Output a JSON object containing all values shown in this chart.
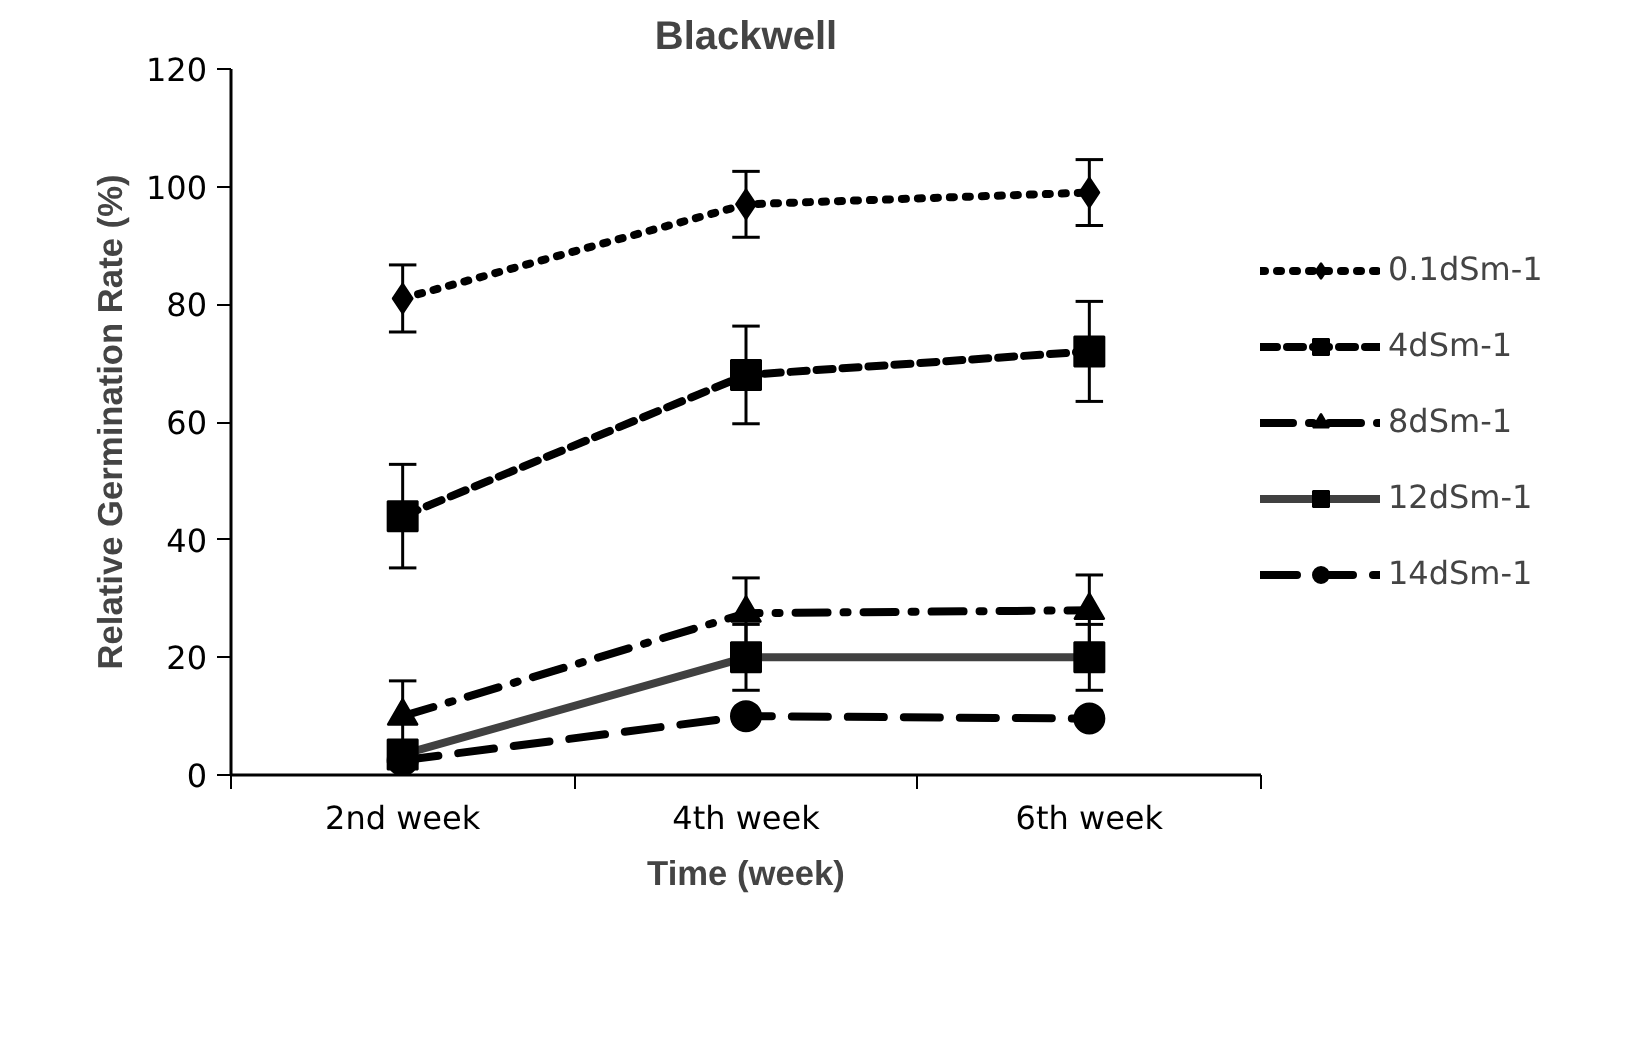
{
  "chart_data": {
    "type": "line",
    "title": "Blackwell",
    "xlabel": "Time (week)",
    "ylabel": "Relative Germination Rate (%)",
    "categories": [
      "2nd week",
      "4th week",
      "6th week"
    ],
    "series": [
      {
        "name": "0.1dSm-1",
        "color": "#000000",
        "values": [
          81,
          97,
          99
        ],
        "errors": [
          5.7,
          5.6,
          5.6
        ],
        "marker": "diamond",
        "line_style": "dotted"
      },
      {
        "name": "4dSm-1",
        "color": "#000000",
        "values": [
          44,
          68,
          72
        ],
        "errors": [
          8.8,
          8.3,
          8.5
        ],
        "marker": "square",
        "line_style": "dashed"
      },
      {
        "name": "8dSm-1",
        "color": "#000000",
        "values": [
          10,
          27.5,
          28
        ],
        "errors": [
          6,
          6,
          6
        ],
        "marker": "triangle",
        "line_style": "dashdot"
      },
      {
        "name": "12dSm-1",
        "color": "#404040",
        "values": [
          3.5,
          20,
          20
        ],
        "errors": [
          null,
          5.6,
          5.6
        ],
        "marker": "square",
        "line_style": "solid"
      },
      {
        "name": "14dSm-1",
        "color": "#000000",
        "values": [
          2.5,
          10,
          9.6
        ],
        "marker": "circle",
        "line_style": "longdash"
      }
    ],
    "ylim": [
      0,
      120
    ],
    "yticks": [
      0,
      20,
      40,
      60,
      80,
      100,
      120
    ],
    "grid": false,
    "legend": "right"
  }
}
